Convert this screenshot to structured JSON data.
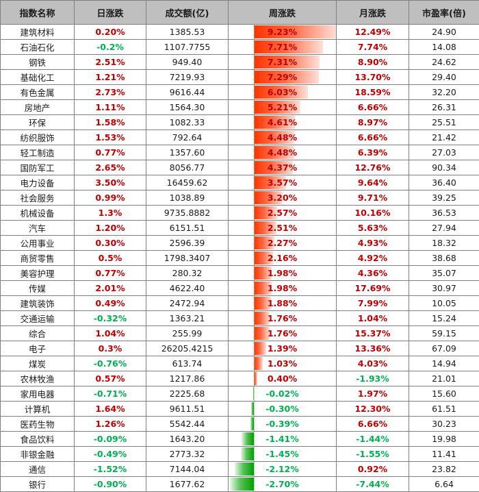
{
  "table": {
    "columns": [
      "指数名称",
      "日涨跌",
      "成交额(亿)",
      "周涨跌",
      "月涨跌",
      "市盈率(倍)"
    ],
    "colors": {
      "up": "#c00000",
      "down": "#00b050",
      "bar_up": "#ff3300",
      "bar_down": "#00a000",
      "header_bg": "#bfbfbf"
    },
    "rows": [
      {
        "name": "建筑材料",
        "daily": "0.20%",
        "volume": "1385.53",
        "weekly": "9.23%",
        "monthly": "12.49%",
        "pe": "24.90"
      },
      {
        "name": "石油石化",
        "daily": "-0.2%",
        "volume": "1107.7755",
        "weekly": "7.71%",
        "monthly": "7.74%",
        "pe": "14.08"
      },
      {
        "name": "钢铁",
        "daily": "2.51%",
        "volume": "949.40",
        "weekly": "7.31%",
        "monthly": "8.90%",
        "pe": "24.62"
      },
      {
        "name": "基础化工",
        "daily": "1.21%",
        "volume": "7219.93",
        "weekly": "7.29%",
        "monthly": "13.70%",
        "pe": "29.40"
      },
      {
        "name": "有色金属",
        "daily": "2.73%",
        "volume": "9616.44",
        "weekly": "6.03%",
        "monthly": "18.59%",
        "pe": "32.20"
      },
      {
        "name": "房地产",
        "daily": "1.11%",
        "volume": "1564.30",
        "weekly": "5.21%",
        "monthly": "6.66%",
        "pe": "26.31"
      },
      {
        "name": "环保",
        "daily": "1.58%",
        "volume": "1082.33",
        "weekly": "4.61%",
        "monthly": "8.97%",
        "pe": "25.51"
      },
      {
        "name": "纺织服饰",
        "daily": "1.53%",
        "volume": "792.64",
        "weekly": "4.48%",
        "monthly": "6.66%",
        "pe": "21.42"
      },
      {
        "name": "轻工制造",
        "daily": "0.77%",
        "volume": "1357.60",
        "weekly": "4.48%",
        "monthly": "6.39%",
        "pe": "27.03"
      },
      {
        "name": "国防军工",
        "daily": "2.65%",
        "volume": "8056.77",
        "weekly": "4.37%",
        "monthly": "12.76%",
        "pe": "90.34"
      },
      {
        "name": "电力设备",
        "daily": "3.50%",
        "volume": "16459.62",
        "weekly": "3.57%",
        "monthly": "9.64%",
        "pe": "36.40"
      },
      {
        "name": "社会服务",
        "daily": "0.99%",
        "volume": "1038.89",
        "weekly": "3.20%",
        "monthly": "9.71%",
        "pe": "39.25"
      },
      {
        "name": "机械设备",
        "daily": "1.3%",
        "volume": "9735.8882",
        "weekly": "2.57%",
        "monthly": "10.16%",
        "pe": "36.53"
      },
      {
        "name": "汽车",
        "daily": "1.20%",
        "volume": "6151.51",
        "weekly": "2.51%",
        "monthly": "5.63%",
        "pe": "27.94"
      },
      {
        "name": "公用事业",
        "daily": "0.30%",
        "volume": "2596.39",
        "weekly": "2.27%",
        "monthly": "4.93%",
        "pe": "18.32"
      },
      {
        "name": "商贸零售",
        "daily": "0.5%",
        "volume": "1798.3407",
        "weekly": "2.16%",
        "monthly": "4.92%",
        "pe": "38.68"
      },
      {
        "name": "美容护理",
        "daily": "0.77%",
        "volume": "280.32",
        "weekly": "1.98%",
        "monthly": "4.36%",
        "pe": "35.07"
      },
      {
        "name": "传媒",
        "daily": "2.01%",
        "volume": "4622.40",
        "weekly": "1.98%",
        "monthly": "17.69%",
        "pe": "30.97"
      },
      {
        "name": "建筑装饰",
        "daily": "0.49%",
        "volume": "2472.94",
        "weekly": "1.88%",
        "monthly": "7.99%",
        "pe": "10.05"
      },
      {
        "name": "交通运输",
        "daily": "-0.32%",
        "volume": "1363.21",
        "weekly": "1.76%",
        "monthly": "1.04%",
        "pe": "15.24"
      },
      {
        "name": "综合",
        "daily": "1.04%",
        "volume": "255.99",
        "weekly": "1.76%",
        "monthly": "15.37%",
        "pe": "59.15"
      },
      {
        "name": "电子",
        "daily": "0.3%",
        "volume": "26205.4215",
        "weekly": "1.39%",
        "monthly": "13.36%",
        "pe": "67.09"
      },
      {
        "name": "煤炭",
        "daily": "-0.76%",
        "volume": "613.74",
        "weekly": "1.03%",
        "monthly": "4.03%",
        "pe": "14.94"
      },
      {
        "name": "农林牧渔",
        "daily": "0.57%",
        "volume": "1217.86",
        "weekly": "0.40%",
        "monthly": "-1.93%",
        "pe": "21.01"
      },
      {
        "name": "家用电器",
        "daily": "-0.71%",
        "volume": "2225.68",
        "weekly": "-0.02%",
        "monthly": "1.97%",
        "pe": "15.60"
      },
      {
        "name": "计算机",
        "daily": "1.64%",
        "volume": "9611.51",
        "weekly": "-0.30%",
        "monthly": "12.30%",
        "pe": "61.51"
      },
      {
        "name": "医药生物",
        "daily": "1.26%",
        "volume": "5542.44",
        "weekly": "-0.39%",
        "monthly": "6.66%",
        "pe": "30.23"
      },
      {
        "name": "食品饮料",
        "daily": "-0.09%",
        "volume": "1643.20",
        "weekly": "-1.41%",
        "monthly": "-1.44%",
        "pe": "19.98"
      },
      {
        "name": "非银金融",
        "daily": "-0.49%",
        "volume": "2773.32",
        "weekly": "-1.45%",
        "monthly": "-1.55%",
        "pe": "11.41"
      },
      {
        "name": "通信",
        "daily": "-1.52%",
        "volume": "7144.04",
        "weekly": "-2.12%",
        "monthly": "0.92%",
        "pe": "23.82"
      },
      {
        "name": "银行",
        "daily": "-0.90%",
        "volume": "1677.62",
        "weekly": "-2.70%",
        "monthly": "-7.44%",
        "pe": "6.64"
      }
    ]
  },
  "chart_data": {
    "type": "table",
    "title": "",
    "columns": [
      "指数名称",
      "日涨跌",
      "成交额(亿)",
      "周涨跌",
      "月涨跌",
      "市盈率(倍)"
    ],
    "databar_column": "周涨跌",
    "categories": [
      "建筑材料",
      "石油石化",
      "钢铁",
      "基础化工",
      "有色金属",
      "房地产",
      "环保",
      "纺织服饰",
      "轻工制造",
      "国防军工",
      "电力设备",
      "社会服务",
      "机械设备",
      "汽车",
      "公用事业",
      "商贸零售",
      "美容护理",
      "传媒",
      "建筑装饰",
      "交通运输",
      "综合",
      "电子",
      "煤炭",
      "农林牧渔",
      "家用电器",
      "计算机",
      "医药生物",
      "食品饮料",
      "非银金融",
      "通信",
      "银行"
    ],
    "series": [
      {
        "name": "日涨跌(%)",
        "values": [
          0.2,
          -0.2,
          2.51,
          1.21,
          2.73,
          1.11,
          1.58,
          1.53,
          0.77,
          2.65,
          3.5,
          0.99,
          1.3,
          1.2,
          0.3,
          0.5,
          0.77,
          2.01,
          0.49,
          -0.32,
          1.04,
          0.3,
          -0.76,
          0.57,
          -0.71,
          1.64,
          1.26,
          -0.09,
          -0.49,
          -1.52,
          -0.9
        ]
      },
      {
        "name": "成交额(亿)",
        "values": [
          1385.53,
          1107.7755,
          949.4,
          7219.93,
          9616.44,
          1564.3,
          1082.33,
          792.64,
          1357.6,
          8056.77,
          16459.62,
          1038.89,
          9735.8882,
          6151.51,
          2596.39,
          1798.3407,
          280.32,
          4622.4,
          2472.94,
          1363.21,
          255.99,
          26205.4215,
          613.74,
          1217.86,
          2225.68,
          9611.51,
          5542.44,
          1643.2,
          2773.32,
          7144.04,
          1677.62
        ]
      },
      {
        "name": "周涨跌(%)",
        "values": [
          9.23,
          7.71,
          7.31,
          7.29,
          6.03,
          5.21,
          4.61,
          4.48,
          4.48,
          4.37,
          3.57,
          3.2,
          2.57,
          2.51,
          2.27,
          2.16,
          1.98,
          1.98,
          1.88,
          1.76,
          1.76,
          1.39,
          1.03,
          0.4,
          -0.02,
          -0.3,
          -0.39,
          -1.41,
          -1.45,
          -2.12,
          -2.7
        ]
      },
      {
        "name": "月涨跌(%)",
        "values": [
          12.49,
          7.74,
          8.9,
          13.7,
          18.59,
          6.66,
          8.97,
          6.66,
          6.39,
          12.76,
          9.64,
          9.71,
          10.16,
          5.63,
          4.93,
          4.92,
          4.36,
          17.69,
          7.99,
          1.04,
          15.37,
          13.36,
          4.03,
          -1.93,
          1.97,
          12.3,
          6.66,
          -1.44,
          -1.55,
          0.92,
          -7.44
        ]
      },
      {
        "name": "市盈率(倍)",
        "values": [
          24.9,
          14.08,
          24.62,
          29.4,
          32.2,
          26.31,
          25.51,
          21.42,
          27.03,
          90.34,
          36.4,
          39.25,
          36.53,
          27.94,
          18.32,
          38.68,
          35.07,
          30.97,
          10.05,
          15.24,
          59.15,
          67.09,
          14.94,
          21.01,
          15.6,
          61.51,
          30.23,
          19.98,
          11.41,
          23.82,
          6.64
        ]
      }
    ],
    "databar_range": [
      -2.7,
      9.23
    ]
  }
}
